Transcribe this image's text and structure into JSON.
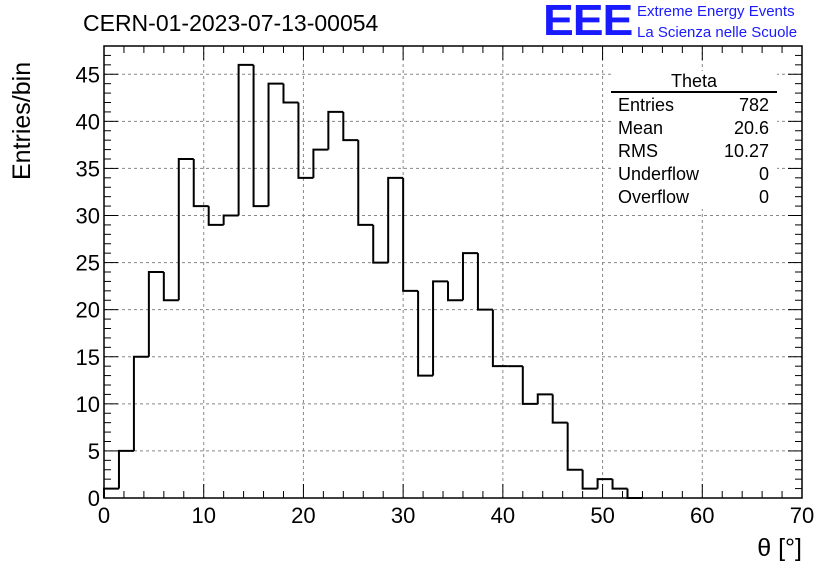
{
  "run_title": "CERN-01-2023-07-13-00054",
  "logo": {
    "mark": "EEE",
    "line1": "Extreme Energy Events",
    "line2": "La Scienza nelle Scuole",
    "color": "#1a1aff"
  },
  "stats": {
    "title": "Theta",
    "rows": [
      {
        "label": "Entries",
        "value": "782"
      },
      {
        "label": "Mean",
        "value": "20.6"
      },
      {
        "label": "RMS",
        "value": "10.27"
      },
      {
        "label": "Underflow",
        "value": "0"
      },
      {
        "label": "Overflow",
        "value": "0"
      }
    ]
  },
  "chart_data": {
    "type": "bar",
    "style": "step-histogram",
    "xlabel": "θ [°]",
    "ylabel": "Entries/bin",
    "xlim": [
      0,
      70
    ],
    "ylim": [
      0,
      48
    ],
    "xticks": [
      0,
      10,
      20,
      30,
      40,
      50,
      60,
      70
    ],
    "yticks": [
      0,
      5,
      10,
      15,
      20,
      25,
      30,
      35,
      40,
      45
    ],
    "grid": true,
    "bin_width": 1.5,
    "bin_edges_start": 0,
    "values": [
      1,
      5,
      15,
      24,
      21,
      36,
      31,
      29,
      30,
      46,
      31,
      44,
      42,
      34,
      37,
      41,
      38,
      29,
      25,
      34,
      22,
      13,
      23,
      21,
      26,
      20,
      14,
      14,
      10,
      11,
      8,
      3,
      1,
      2,
      1,
      0
    ],
    "line_color": "#000000"
  }
}
